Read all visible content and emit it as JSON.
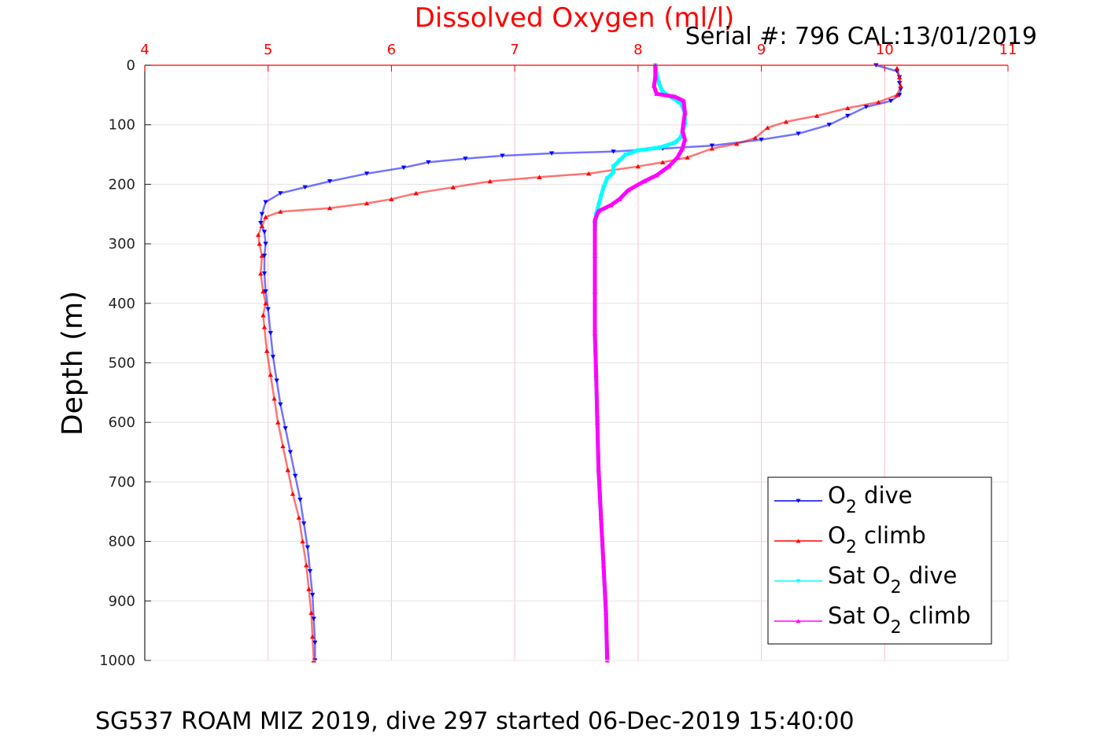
{
  "chart_data": {
    "type": "line",
    "title": "Dissolved Oxygen (ml/l)",
    "subtitle": "Serial #: 796  CAL:13/01/2019",
    "caption": "SG537 ROAM MIZ 2019, dive 297 started 06-Dec-2019 15:40:00",
    "xlabel": "Dissolved Oxygen (ml/l)",
    "ylabel": "Depth (m)",
    "xlim": [
      4,
      11
    ],
    "ylim": [
      0,
      1000
    ],
    "y_reversed": true,
    "x_axis_position": "top",
    "x_ticks": [
      4,
      5,
      6,
      7,
      8,
      9,
      10,
      11
    ],
    "x_tick_labels": [
      "4",
      "5",
      "6",
      "7",
      "8",
      "9",
      "10",
      "11"
    ],
    "y_ticks": [
      0,
      100,
      200,
      300,
      400,
      500,
      600,
      700,
      800,
      900,
      1000
    ],
    "y_tick_labels": [
      "0",
      "100",
      "200",
      "300",
      "400",
      "500",
      "600",
      "700",
      "800",
      "900",
      "1000"
    ],
    "grid": true,
    "legend_position": "bottom-right",
    "colors": {
      "axis_x": "#ff0000",
      "grid": "#ffc0cb",
      "title": "#ff0000",
      "o2_dive": "#0000ff",
      "o2_climb": "#ff0000",
      "sat_dive": "#00ffff",
      "sat_climb": "#ff00ff"
    },
    "legend": [
      {
        "prefix": "O",
        "sub": "2",
        "suffix": " dive"
      },
      {
        "prefix": "O",
        "sub": "2",
        "suffix": " climb"
      },
      {
        "prefix": "Sat O",
        "sub": "2",
        "suffix": " dive"
      },
      {
        "prefix": "Sat O",
        "sub": "2",
        "suffix": " climb"
      }
    ],
    "series": [
      {
        "key": "o2_dive",
        "marker": "triangle-down",
        "points": [
          [
            9.93,
            0
          ],
          [
            10.1,
            10
          ],
          [
            10.12,
            20
          ],
          [
            10.12,
            30
          ],
          [
            10.13,
            40
          ],
          [
            10.12,
            50
          ],
          [
            10.05,
            60
          ],
          [
            9.85,
            70
          ],
          [
            9.7,
            85
          ],
          [
            9.55,
            100
          ],
          [
            9.3,
            115
          ],
          [
            9.0,
            125
          ],
          [
            8.6,
            135
          ],
          [
            8.2,
            140
          ],
          [
            7.8,
            145
          ],
          [
            7.3,
            148
          ],
          [
            6.9,
            152
          ],
          [
            6.6,
            157
          ],
          [
            6.3,
            163
          ],
          [
            6.1,
            172
          ],
          [
            5.8,
            182
          ],
          [
            5.5,
            195
          ],
          [
            5.3,
            205
          ],
          [
            5.1,
            215
          ],
          [
            4.98,
            230
          ],
          [
            4.95,
            250
          ],
          [
            4.94,
            265
          ],
          [
            4.97,
            280
          ],
          [
            4.98,
            300
          ],
          [
            4.97,
            320
          ],
          [
            4.97,
            350
          ],
          [
            4.98,
            380
          ],
          [
            5.0,
            410
          ],
          [
            5.02,
            450
          ],
          [
            5.04,
            490
          ],
          [
            5.07,
            530
          ],
          [
            5.1,
            570
          ],
          [
            5.14,
            610
          ],
          [
            5.18,
            650
          ],
          [
            5.22,
            690
          ],
          [
            5.26,
            730
          ],
          [
            5.29,
            770
          ],
          [
            5.32,
            810
          ],
          [
            5.34,
            850
          ],
          [
            5.36,
            890
          ],
          [
            5.37,
            930
          ],
          [
            5.38,
            970
          ],
          [
            5.38,
            1000
          ]
        ]
      },
      {
        "key": "o2_climb",
        "marker": "triangle-up",
        "points": [
          [
            5.37,
            1000
          ],
          [
            5.36,
            960
          ],
          [
            5.35,
            920
          ],
          [
            5.33,
            880
          ],
          [
            5.31,
            840
          ],
          [
            5.28,
            800
          ],
          [
            5.25,
            760
          ],
          [
            5.2,
            720
          ],
          [
            5.16,
            680
          ],
          [
            5.12,
            640
          ],
          [
            5.08,
            600
          ],
          [
            5.05,
            560
          ],
          [
            5.02,
            520
          ],
          [
            4.99,
            480
          ],
          [
            4.97,
            440
          ],
          [
            4.96,
            420
          ],
          [
            4.98,
            400
          ],
          [
            4.96,
            380
          ],
          [
            4.94,
            350
          ],
          [
            4.95,
            320
          ],
          [
            4.93,
            300
          ],
          [
            4.92,
            285
          ],
          [
            4.95,
            270
          ],
          [
            4.98,
            255
          ],
          [
            5.1,
            246
          ],
          [
            5.5,
            240
          ],
          [
            5.8,
            232
          ],
          [
            6.0,
            225
          ],
          [
            6.2,
            215
          ],
          [
            6.5,
            205
          ],
          [
            6.8,
            195
          ],
          [
            7.2,
            188
          ],
          [
            7.6,
            182
          ],
          [
            8.0,
            170
          ],
          [
            8.2,
            163
          ],
          [
            8.4,
            155
          ],
          [
            8.6,
            140
          ],
          [
            8.8,
            132
          ],
          [
            8.95,
            122
          ],
          [
            9.05,
            105
          ],
          [
            9.2,
            95
          ],
          [
            9.45,
            85
          ],
          [
            9.7,
            72
          ],
          [
            9.95,
            62
          ],
          [
            10.1,
            50
          ],
          [
            10.13,
            35
          ],
          [
            10.12,
            20
          ],
          [
            10.1,
            5
          ]
        ]
      },
      {
        "key": "sat_dive",
        "marker": "triangle-down",
        "points": [
          [
            8.14,
            0
          ],
          [
            8.15,
            15
          ],
          [
            8.17,
            30
          ],
          [
            8.2,
            45
          ],
          [
            8.28,
            55
          ],
          [
            8.35,
            65
          ],
          [
            8.38,
            80
          ],
          [
            8.38,
            100
          ],
          [
            8.35,
            120
          ],
          [
            8.3,
            130
          ],
          [
            8.18,
            138
          ],
          [
            8.0,
            143
          ],
          [
            7.9,
            150
          ],
          [
            7.85,
            160
          ],
          [
            7.8,
            170
          ],
          [
            7.8,
            180
          ],
          [
            7.75,
            190
          ],
          [
            7.72,
            205
          ],
          [
            7.7,
            220
          ],
          [
            7.68,
            235
          ],
          [
            7.66,
            250
          ],
          [
            7.65,
            280
          ],
          [
            7.65,
            320
          ],
          [
            7.65,
            380
          ],
          [
            7.65,
            450
          ],
          [
            7.66,
            520
          ],
          [
            7.67,
            600
          ],
          [
            7.68,
            680
          ],
          [
            7.7,
            760
          ],
          [
            7.72,
            840
          ],
          [
            7.74,
            920
          ],
          [
            7.75,
            1000
          ]
        ]
      },
      {
        "key": "sat_climb",
        "marker": "triangle-up",
        "points": [
          [
            7.75,
            1000
          ],
          [
            7.74,
            920
          ],
          [
            7.72,
            840
          ],
          [
            7.7,
            760
          ],
          [
            7.68,
            680
          ],
          [
            7.67,
            600
          ],
          [
            7.66,
            520
          ],
          [
            7.65,
            450
          ],
          [
            7.65,
            380
          ],
          [
            7.65,
            320
          ],
          [
            7.65,
            260
          ],
          [
            7.68,
            245
          ],
          [
            7.78,
            235
          ],
          [
            7.85,
            225
          ],
          [
            7.92,
            210
          ],
          [
            8.05,
            195
          ],
          [
            8.15,
            185
          ],
          [
            8.25,
            170
          ],
          [
            8.32,
            155
          ],
          [
            8.36,
            140
          ],
          [
            8.38,
            125
          ],
          [
            8.36,
            110
          ],
          [
            8.37,
            95
          ],
          [
            8.38,
            80
          ],
          [
            8.37,
            60
          ],
          [
            8.3,
            53
          ],
          [
            8.15,
            48
          ],
          [
            8.13,
            35
          ],
          [
            8.14,
            20
          ],
          [
            8.14,
            0
          ]
        ]
      }
    ]
  }
}
